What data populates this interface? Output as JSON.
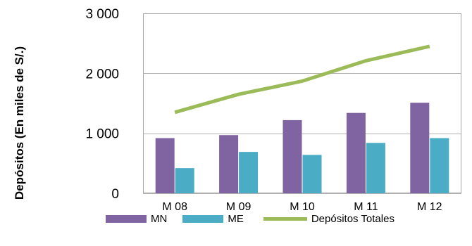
{
  "chart_data": {
    "type": "bar",
    "title": "",
    "xlabel": "",
    "ylabel": "Depósitos (En miles de S/.)",
    "categories": [
      "M 08",
      "M 09",
      "M 10",
      "M 11",
      "M 12"
    ],
    "ylim": [
      0,
      3000
    ],
    "yticks": [
      "0",
      "1 000",
      "2 000",
      "3 000"
    ],
    "ytick_values": [
      0,
      1000,
      2000,
      3000
    ],
    "grid": true,
    "legend_position": "bottom",
    "series": [
      {
        "name": "MN",
        "kind": "bar",
        "color": "#8064A2",
        "values": [
          920,
          970,
          1220,
          1340,
          1510
        ]
      },
      {
        "name": "ME",
        "kind": "bar",
        "color": "#4BACC6",
        "values": [
          420,
          690,
          640,
          840,
          920
        ]
      },
      {
        "name": "Depósitos Totales",
        "kind": "line",
        "color": "#9BBB59",
        "values": [
          1350,
          1650,
          1870,
          2210,
          2450
        ]
      }
    ]
  }
}
